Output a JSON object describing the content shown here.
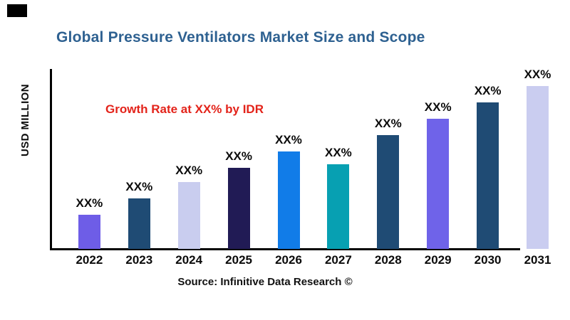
{
  "header": {
    "title": "Global Pressure Ventilators Market Size and Scope",
    "title_color": "#2E6191"
  },
  "annotation": {
    "text": "Growth Rate at XX% by IDR",
    "color": "#E3231A"
  },
  "footer": {
    "source": "Source: Infinitive Data Research ©"
  },
  "logo": {
    "color": "#000000"
  },
  "chart_data": {
    "type": "bar",
    "title": "Global Pressure Ventilators Market Size and Scope",
    "xlabel": "",
    "ylabel": "USD MILLION",
    "categories": [
      "2022",
      "2023",
      "2024",
      "2025",
      "2026",
      "2027",
      "2028",
      "2029",
      "2030",
      "2031"
    ],
    "relative_values": [
      21,
      31,
      41,
      50,
      60,
      52,
      70,
      80,
      90,
      100
    ],
    "value_scale_note": "y-axis has no numeric ticks; bar values shown only as XX% placeholder labels; relative_values are heights estimated from pixels normalized to tallest bar = 100",
    "bar_labels": [
      "XX%",
      "XX%",
      "XX%",
      "XX%",
      "XX%",
      "XX%",
      "XX%",
      "XX%",
      "XX%",
      "XX%"
    ],
    "bar_colors": [
      "#6E5DE7",
      "#1F4B74",
      "#C9CDEF",
      "#211B55",
      "#117CE8",
      "#07A0B2",
      "#1F4B74",
      "#6F63E9",
      "#1F4B74",
      "#CACDF0"
    ],
    "annotation": "Growth Rate at XX% by IDR",
    "grid": false,
    "legend_position": "none",
    "axis_color": "#000000"
  }
}
